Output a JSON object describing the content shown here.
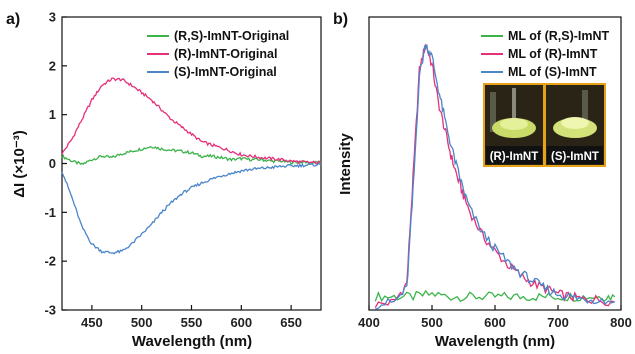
{
  "figure": {
    "panel_a_label": "a)",
    "panel_b_label": "b)"
  },
  "chart_data": [
    {
      "type": "line",
      "panel": "a)",
      "xlabel": "Wavelength (nm)",
      "ylabel": "ΔI (×10⁻³)",
      "xlim": [
        420,
        680
      ],
      "ylim": [
        -3,
        3
      ],
      "xticks": [
        450,
        500,
        550,
        600,
        650
      ],
      "yticks": [
        -3,
        -2,
        -1,
        0,
        1,
        2,
        3
      ],
      "legend_position": "top-right",
      "series": [
        {
          "name": "(R,S)-ImNT-Original",
          "color": "#3cb44b",
          "x": [
            420,
            430,
            440,
            450,
            460,
            470,
            480,
            490,
            500,
            510,
            520,
            530,
            540,
            550,
            560,
            570,
            580,
            590,
            600,
            610,
            620,
            630,
            640,
            650,
            660,
            670,
            680
          ],
          "y": [
            0.15,
            0.05,
            -0.02,
            0.08,
            0.15,
            0.12,
            0.2,
            0.25,
            0.3,
            0.35,
            0.3,
            0.27,
            0.25,
            0.22,
            0.15,
            0.15,
            0.12,
            0.08,
            0.1,
            0.08,
            0.08,
            0.05,
            0.05,
            0.02,
            0.03,
            0.02,
            0.02
          ]
        },
        {
          "name": "(R)-ImNT-Original",
          "color": "#e6307a",
          "x": [
            420,
            430,
            440,
            450,
            460,
            470,
            480,
            490,
            500,
            510,
            520,
            530,
            540,
            550,
            560,
            570,
            580,
            590,
            600,
            610,
            620,
            630,
            640,
            650,
            660,
            670,
            680
          ],
          "y": [
            0.2,
            0.5,
            0.9,
            1.3,
            1.6,
            1.73,
            1.72,
            1.6,
            1.45,
            1.3,
            1.1,
            0.9,
            0.75,
            0.6,
            0.45,
            0.38,
            0.32,
            0.25,
            0.18,
            0.15,
            0.12,
            0.1,
            0.08,
            0.05,
            0.03,
            0.02,
            0.02
          ]
        },
        {
          "name": "(S)-ImNT-Original",
          "color": "#4a86c8",
          "x": [
            420,
            430,
            440,
            450,
            460,
            470,
            480,
            490,
            500,
            510,
            520,
            530,
            540,
            550,
            560,
            570,
            580,
            590,
            600,
            610,
            620,
            630,
            640,
            650,
            660,
            670,
            680
          ],
          "y": [
            -0.15,
            -0.7,
            -1.3,
            -1.65,
            -1.8,
            -1.83,
            -1.8,
            -1.65,
            -1.45,
            -1.25,
            -1.0,
            -0.8,
            -0.62,
            -0.5,
            -0.4,
            -0.32,
            -0.25,
            -0.2,
            -0.15,
            -0.12,
            -0.1,
            -0.08,
            -0.06,
            -0.05,
            -0.04,
            -0.03,
            -0.02
          ]
        }
      ]
    },
    {
      "type": "line",
      "panel": "b)",
      "xlabel": "Wavelength (nm)",
      "ylabel": "Intensity",
      "xlim": [
        400,
        800
      ],
      "ylim": [
        0,
        1.1
      ],
      "xticks": [
        400,
        500,
        600,
        700,
        800
      ],
      "yticks": [],
      "legend_position": "top-right",
      "series": [
        {
          "name": "ML of (R,S)-ImNT",
          "color": "#3cb44b",
          "x": [
            410,
            440,
            470,
            500,
            530,
            560,
            590,
            620,
            650,
            680,
            710,
            740,
            770,
            790
          ],
          "y": [
            0.05,
            0.05,
            0.05,
            0.06,
            0.05,
            0.05,
            0.05,
            0.05,
            0.05,
            0.05,
            0.05,
            0.05,
            0.05,
            0.05
          ]
        },
        {
          "name": "ML of (R)-ImNT",
          "color": "#e6307a",
          "x": [
            410,
            440,
            460,
            470,
            480,
            490,
            500,
            510,
            520,
            530,
            540,
            550,
            560,
            580,
            600,
            620,
            640,
            660,
            680,
            700,
            720,
            740,
            760,
            790
          ],
          "y": [
            0.02,
            0.03,
            0.1,
            0.5,
            0.9,
            1.0,
            0.92,
            0.78,
            0.68,
            0.58,
            0.5,
            0.43,
            0.37,
            0.28,
            0.22,
            0.17,
            0.13,
            0.1,
            0.08,
            0.06,
            0.05,
            0.04,
            0.04,
            0.03
          ]
        },
        {
          "name": "ML of (S)-ImNT",
          "color": "#4a86c8",
          "x": [
            410,
            440,
            460,
            470,
            480,
            490,
            500,
            510,
            520,
            530,
            540,
            550,
            560,
            580,
            600,
            620,
            640,
            660,
            680,
            700,
            720,
            740,
            760,
            790
          ],
          "y": [
            0.02,
            0.03,
            0.08,
            0.45,
            0.88,
            1.0,
            0.95,
            0.83,
            0.72,
            0.62,
            0.53,
            0.45,
            0.38,
            0.29,
            0.23,
            0.18,
            0.14,
            0.11,
            0.08,
            0.06,
            0.05,
            0.04,
            0.04,
            0.03
          ]
        }
      ],
      "inset_captions": [
        "(R)-ImNT",
        "(S)-ImNT"
      ]
    }
  ]
}
